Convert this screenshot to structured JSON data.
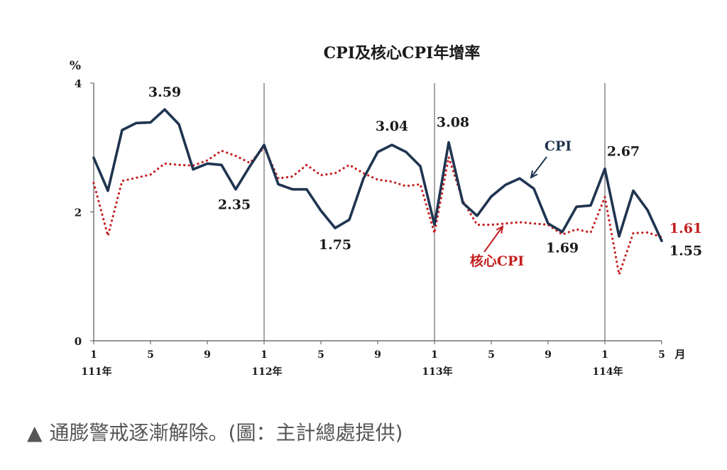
{
  "caption": {
    "marker": "▲",
    "text": "通膨警戒逐漸解除。(圖：主計總處提供)"
  },
  "colors": {
    "cpi": "#1f3450",
    "core": "#c41e1e",
    "axis": "#555555",
    "text": "#1a1a1a"
  },
  "chart_data": {
    "type": "line",
    "title": "CPI及核心CPI年增率",
    "ylabel": "%",
    "ylim": [
      0,
      4
    ],
    "yticks": [
      0,
      2,
      4
    ],
    "xticks": [
      {
        "i": 0,
        "label": "1"
      },
      {
        "i": 4,
        "label": "5"
      },
      {
        "i": 8,
        "label": "9"
      },
      {
        "i": 12,
        "label": "1"
      },
      {
        "i": 16,
        "label": "5"
      },
      {
        "i": 20,
        "label": "9"
      },
      {
        "i": 24,
        "label": "1"
      },
      {
        "i": 28,
        "label": "5"
      },
      {
        "i": 32,
        "label": "9"
      },
      {
        "i": 36,
        "label": "1"
      },
      {
        "i": 40,
        "label": "5"
      }
    ],
    "x_unit": "月",
    "year_labels": [
      {
        "i": 0,
        "label": "111年"
      },
      {
        "i": 12,
        "label": "112年"
      },
      {
        "i": 24,
        "label": "113年"
      },
      {
        "i": 36,
        "label": "114年"
      }
    ],
    "year_dividers": [
      12,
      24,
      36
    ],
    "series": [
      {
        "name": "CPI",
        "style": "solid",
        "values": [
          2.84,
          2.33,
          3.27,
          3.38,
          3.39,
          3.59,
          3.36,
          2.66,
          2.75,
          2.73,
          2.35,
          2.71,
          3.04,
          2.43,
          2.35,
          2.35,
          2.02,
          1.75,
          1.88,
          2.52,
          2.93,
          3.04,
          2.93,
          2.71,
          1.8,
          3.08,
          2.14,
          1.94,
          2.24,
          2.42,
          2.52,
          2.36,
          1.82,
          1.69,
          2.08,
          2.1,
          2.67,
          1.62,
          2.33,
          2.03,
          1.55
        ]
      },
      {
        "name": "核心CPI",
        "style": "dotted",
        "values": [
          2.45,
          1.63,
          2.48,
          2.53,
          2.58,
          2.75,
          2.73,
          2.72,
          2.8,
          2.95,
          2.87,
          2.76,
          3.0,
          2.52,
          2.55,
          2.73,
          2.57,
          2.6,
          2.73,
          2.6,
          2.5,
          2.47,
          2.4,
          2.43,
          1.67,
          2.85,
          2.17,
          1.8,
          1.8,
          1.82,
          1.84,
          1.82,
          1.8,
          1.65,
          1.73,
          1.68,
          2.23,
          1.03,
          1.67,
          1.68,
          1.61
        ]
      }
    ],
    "data_labels": [
      {
        "series": 0,
        "i": 5,
        "text": "3.59"
      },
      {
        "series": 0,
        "i": 10,
        "text": "2.35"
      },
      {
        "series": 0,
        "i": 17,
        "text": "1.75"
      },
      {
        "series": 0,
        "i": 21,
        "text": "3.04"
      },
      {
        "series": 0,
        "i": 25,
        "text": "3.08"
      },
      {
        "series": 0,
        "i": 33,
        "text": "1.69"
      },
      {
        "series": 0,
        "i": 36,
        "text": "2.67"
      },
      {
        "series": 0,
        "i": 40,
        "text": "1.55"
      },
      {
        "series": 1,
        "i": 40,
        "text": "1.61"
      }
    ],
    "annotations": [
      {
        "text": "CPI",
        "series": 0,
        "i": 31
      },
      {
        "text": "核心CPI",
        "series": 1,
        "i": 28
      }
    ]
  }
}
